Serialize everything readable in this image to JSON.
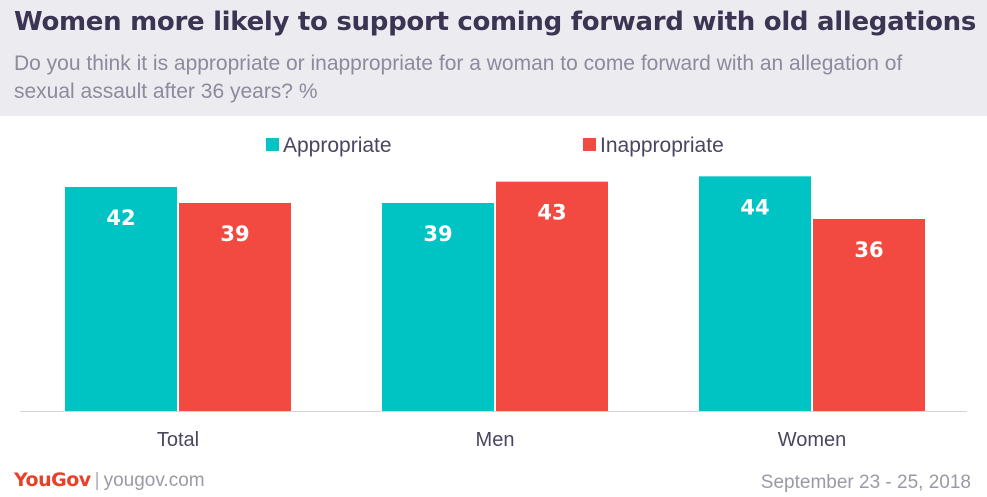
{
  "header": {
    "title": "Women more likely to support coming forward with old allegations",
    "subtitle": "Do you think it is appropriate or inappropriate for a woman to come forward with an allegation of sexual assault after 36 years? %"
  },
  "chart_data": {
    "type": "bar",
    "categories": [
      "Total",
      "Men",
      "Women"
    ],
    "series": [
      {
        "name": "Appropriate",
        "values": [
          42,
          39,
          44
        ],
        "color": "#00c4c4"
      },
      {
        "name": "Inappropriate",
        "values": [
          39,
          43,
          36
        ],
        "color": "#f24a40"
      }
    ],
    "ylim": [
      0,
      45
    ],
    "legend_position": "top-center",
    "grid": false,
    "data_labels": true
  },
  "footer": {
    "logo": "YouGov",
    "separator": "|",
    "site": "yougov.com",
    "date": "September 23 - 25, 2018"
  }
}
